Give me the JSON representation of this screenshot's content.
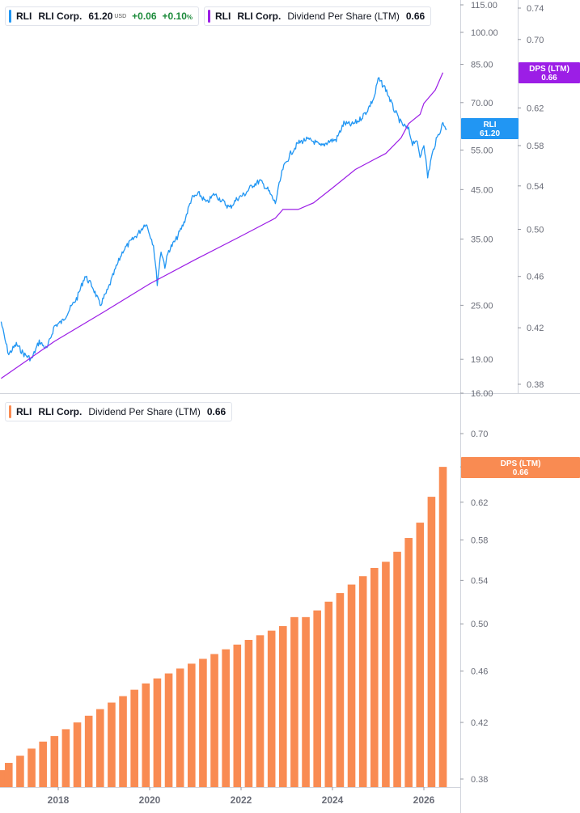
{
  "colors": {
    "price": "#2196f3",
    "dps_line": "#9c1ee6",
    "dps_bar": "#f98b52",
    "axis": "#d1d4dc",
    "tick_text": "#6a6d78"
  },
  "legends": {
    "price": {
      "ticker": "RLI",
      "name": "RLI Corp.",
      "value": "61.20",
      "currency": "USD",
      "change": "+0.06",
      "change_pct": "+0.10",
      "pct_sign": "%"
    },
    "dps_top": {
      "ticker": "RLI",
      "name": "RLI Corp.",
      "metric": "Dividend Per Share (LTM)",
      "value": "0.66"
    },
    "dps_bottom": {
      "ticker": "RLI",
      "name": "RLI Corp.",
      "metric": "Dividend Per Share (LTM)",
      "value": "0.66"
    }
  },
  "tags": {
    "dps_top": {
      "line1": "DPS (LTM)",
      "line2": "0.66"
    },
    "price": {
      "line1": "RLI",
      "line2": "61.20"
    },
    "dps_bottom": {
      "line1": "DPS (LTM)",
      "line2": "0.66"
    }
  },
  "chart_data": [
    {
      "type": "line",
      "scale": "log",
      "x_range": [
        "2016-10",
        "2026-09"
      ],
      "price_axis_ticks": [
        "16.00",
        "19.00",
        "25.00",
        "35.00",
        "45.00",
        "55.00",
        "70.00",
        "85.00",
        "100.00",
        "115.00"
      ],
      "dps_axis_ticks": [
        "0.38",
        "0.42",
        "0.46",
        "0.50",
        "0.54",
        "0.58",
        "0.62",
        "0.70",
        "0.74"
      ],
      "series": [
        {
          "name": "RLI",
          "axis": "left-price",
          "x": [
            "2016-10",
            "2016-11",
            "2016-12",
            "2017-02",
            "2017-04",
            "2017-06",
            "2017-08",
            "2017-10",
            "2017-12",
            "2018-02",
            "2018-04",
            "2018-06",
            "2018-08",
            "2018-10",
            "2018-12",
            "2019-02",
            "2019-04",
            "2019-06",
            "2019-08",
            "2019-10",
            "2019-12",
            "2020-01",
            "2020-02",
            "2020-03",
            "2020-04",
            "2020-05",
            "2020-06",
            "2020-08",
            "2020-10",
            "2020-12",
            "2021-02",
            "2021-04",
            "2021-06",
            "2021-08",
            "2021-10",
            "2021-12",
            "2022-02",
            "2022-04",
            "2022-06",
            "2022-08",
            "2022-10",
            "2022-11",
            "2022-12",
            "2023-02",
            "2023-04",
            "2023-06",
            "2023-08",
            "2023-10",
            "2023-12",
            "2024-02",
            "2024-04",
            "2024-06",
            "2024-08",
            "2024-10",
            "2024-12",
            "2025-01",
            "2025-03",
            "2025-05",
            "2025-07",
            "2025-09",
            "2025-10",
            "2025-11",
            "2025-12",
            "2026-01",
            "2026-02",
            "2026-03",
            "2026-04",
            "2026-05",
            "2026-06",
            "2026-07"
          ],
          "values": [
            23.0,
            21.0,
            19.5,
            20.5,
            19.5,
            19.0,
            20.8,
            20.0,
            22.5,
            23.0,
            24.5,
            26.0,
            29.0,
            27.5,
            25.0,
            27.0,
            30.0,
            33.0,
            34.5,
            36.0,
            38.0,
            36.0,
            34.0,
            28.0,
            33.0,
            30.5,
            33.0,
            35.0,
            38.0,
            43.0,
            44.0,
            42.0,
            44.0,
            42.5,
            41.0,
            43.0,
            44.0,
            46.0,
            47.0,
            45.0,
            42.0,
            46.0,
            50.0,
            54.0,
            57.0,
            58.0,
            57.5,
            56.0,
            57.5,
            58.0,
            63.0,
            62.5,
            64.0,
            67.0,
            72.0,
            79.0,
            75.0,
            68.0,
            63.0,
            61.0,
            57.0,
            58.0,
            53.0,
            57.0,
            48.0,
            53.0,
            57.0,
            60.0,
            63.0,
            61.2
          ]
        },
        {
          "name": "DPS (LTM)",
          "axis": "right-dps",
          "x": [
            "2016-10",
            "2017-12",
            "2019-01",
            "2020-01",
            "2021-01",
            "2022-01",
            "2022-10",
            "2022-12",
            "2023-04",
            "2023-08",
            "2024-01",
            "2024-07",
            "2024-12",
            "2025-03",
            "2025-07",
            "2025-09",
            "2025-12",
            "2026-01",
            "2026-04",
            "2026-06"
          ],
          "values": [
            0.384,
            0.41,
            0.432,
            0.454,
            0.474,
            0.494,
            0.51,
            0.518,
            0.518,
            0.524,
            0.538,
            0.556,
            0.566,
            0.572,
            0.588,
            0.603,
            0.613,
            0.625,
            0.64,
            0.66
          ]
        }
      ]
    },
    {
      "type": "bar",
      "scale": "log",
      "axis_ticks": [
        "0.38",
        "0.42",
        "0.46",
        "0.50",
        "0.54",
        "0.58",
        "0.62",
        "0.66",
        "0.70"
      ],
      "x_ticks": [
        "2018",
        "2020",
        "2022",
        "2024",
        "2026"
      ],
      "series": [
        {
          "name": "DPS (LTM)",
          "x": [
            "2016-10",
            "2016-12",
            "2017-03",
            "2017-06",
            "2017-09",
            "2017-12",
            "2018-03",
            "2018-06",
            "2018-09",
            "2018-12",
            "2019-03",
            "2019-06",
            "2019-09",
            "2019-12",
            "2020-03",
            "2020-06",
            "2020-09",
            "2020-12",
            "2021-03",
            "2021-06",
            "2021-09",
            "2021-12",
            "2022-03",
            "2022-06",
            "2022-09",
            "2022-12",
            "2023-03",
            "2023-06",
            "2023-09",
            "2023-12",
            "2024-03",
            "2024-06",
            "2024-09",
            "2024-12",
            "2025-03",
            "2025-06",
            "2025-09",
            "2025-12",
            "2026-03",
            "2026-06"
          ],
          "values": [
            0.386,
            0.391,
            0.396,
            0.401,
            0.406,
            0.41,
            0.415,
            0.42,
            0.425,
            0.43,
            0.435,
            0.44,
            0.445,
            0.45,
            0.454,
            0.458,
            0.462,
            0.466,
            0.47,
            0.474,
            0.478,
            0.482,
            0.486,
            0.49,
            0.494,
            0.498,
            0.506,
            0.506,
            0.512,
            0.52,
            0.528,
            0.536,
            0.544,
            0.552,
            0.558,
            0.568,
            0.582,
            0.598,
            0.626,
            0.66
          ]
        }
      ]
    }
  ]
}
